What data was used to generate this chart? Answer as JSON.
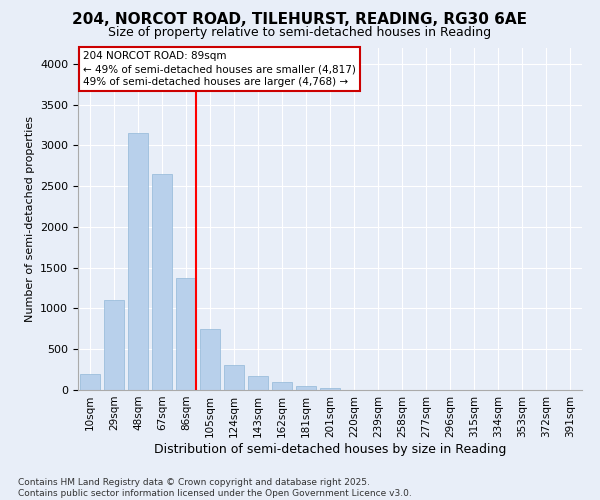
{
  "title1": "204, NORCOT ROAD, TILEHURST, READING, RG30 6AE",
  "title2": "Size of property relative to semi-detached houses in Reading",
  "xlabel": "Distribution of semi-detached houses by size in Reading",
  "ylabel": "Number of semi-detached properties",
  "categories": [
    "10sqm",
    "29sqm",
    "48sqm",
    "67sqm",
    "86sqm",
    "105sqm",
    "124sqm",
    "143sqm",
    "162sqm",
    "181sqm",
    "201sqm",
    "220sqm",
    "239sqm",
    "258sqm",
    "277sqm",
    "296sqm",
    "315sqm",
    "334sqm",
    "353sqm",
    "372sqm",
    "391sqm"
  ],
  "values": [
    200,
    1100,
    3150,
    2650,
    1370,
    750,
    310,
    175,
    95,
    55,
    25,
    0,
    0,
    0,
    0,
    0,
    0,
    0,
    0,
    0,
    0
  ],
  "bar_color": "#b8d0eb",
  "bar_edge_color": "#92b8d8",
  "highlight_line_index": 4,
  "annotation_title": "204 NORCOT ROAD: 89sqm",
  "annotation_line1": "← 49% of semi-detached houses are smaller (4,817)",
  "annotation_line2": "49% of semi-detached houses are larger (4,768) →",
  "annotation_box_facecolor": "#ffffff",
  "annotation_box_edgecolor": "#cc0000",
  "ylim": [
    0,
    4200
  ],
  "yticks": [
    0,
    500,
    1000,
    1500,
    2000,
    2500,
    3000,
    3500,
    4000
  ],
  "footnote1": "Contains HM Land Registry data © Crown copyright and database right 2025.",
  "footnote2": "Contains public sector information licensed under the Open Government Licence v3.0.",
  "bg_color": "#e8eef8",
  "plot_bg_color": "#e8eef8",
  "title1_fontsize": 11,
  "title2_fontsize": 9,
  "ylabel_fontsize": 8,
  "xlabel_fontsize": 9
}
